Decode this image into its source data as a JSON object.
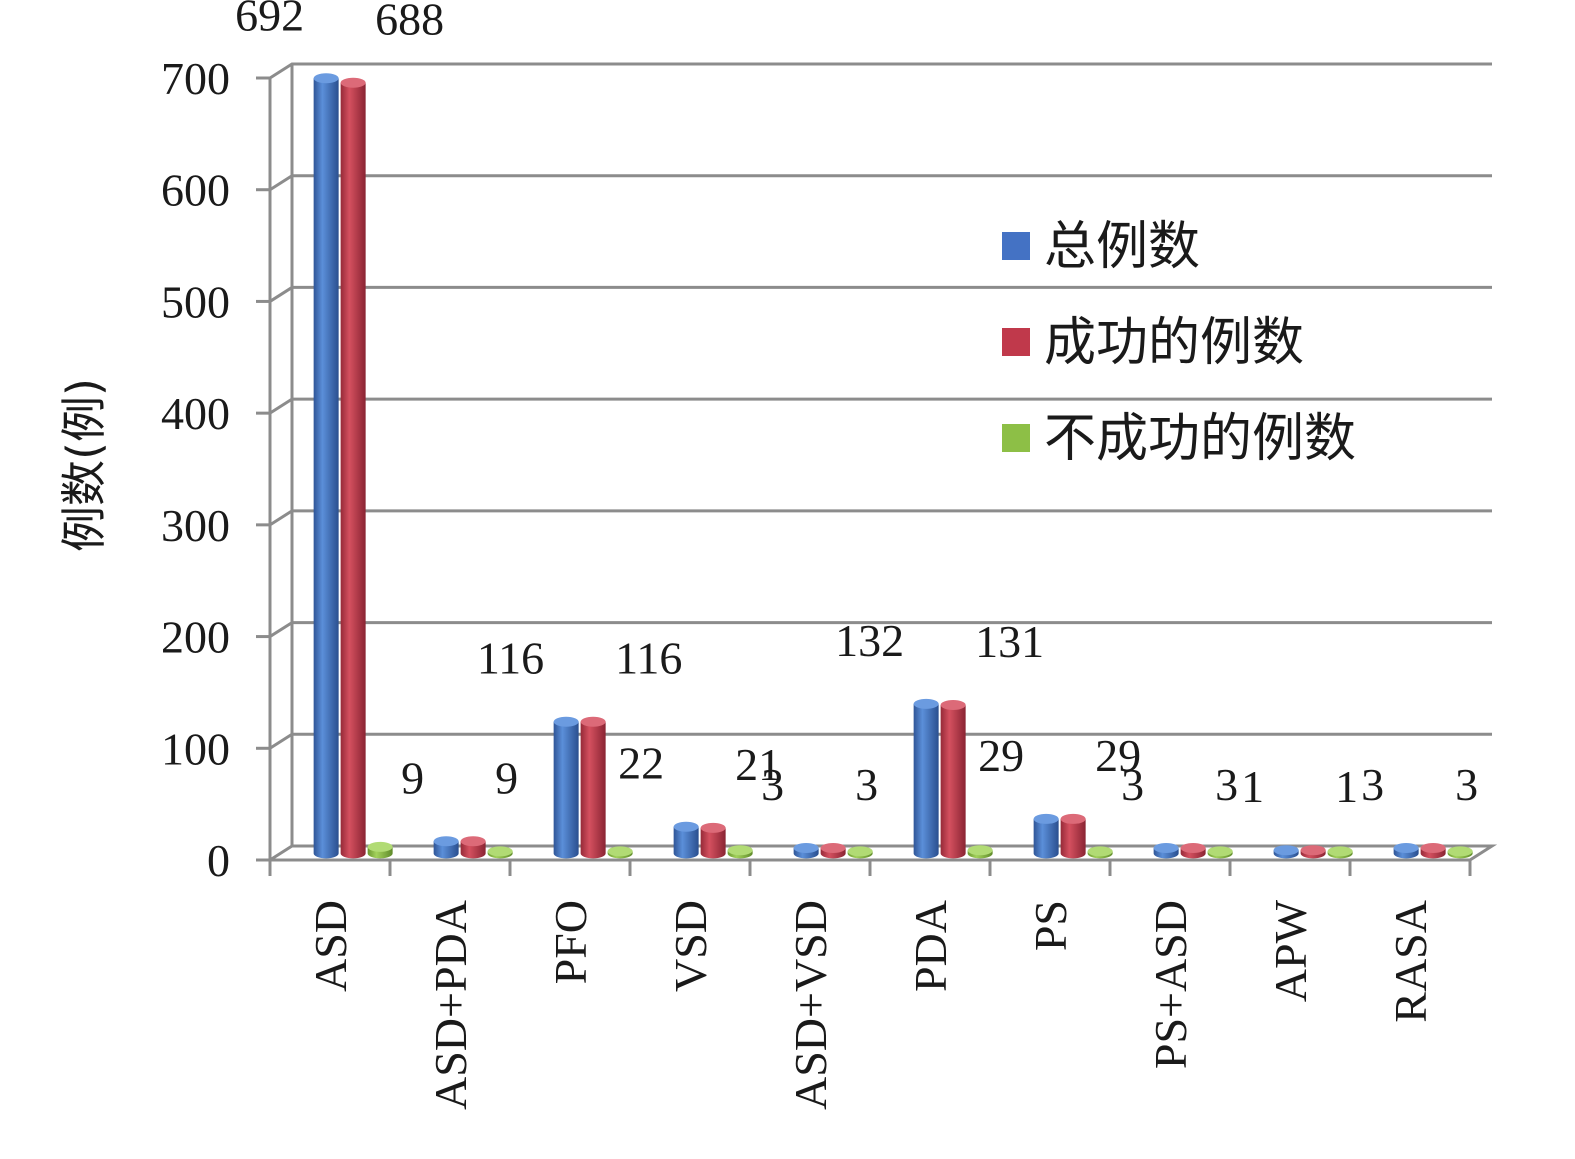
{
  "chart_data": {
    "type": "bar",
    "ylabel": "例数(例)",
    "ylim": [
      0,
      700
    ],
    "yticks": [
      "0",
      "100",
      "200",
      "300",
      "400",
      "500",
      "600",
      "700"
    ],
    "grid": true,
    "legend_position": "right",
    "categories": [
      "ASD",
      "ASD+PDA",
      "PFO",
      "VSD",
      "ASD+VSD",
      "PDA",
      "PS",
      "PS+ASD",
      "APW",
      "RASA"
    ],
    "series": [
      {
        "name": "总例数",
        "color": "#4472C4",
        "values": [
          692,
          9,
          116,
          22,
          3,
          132,
          29,
          3,
          1,
          3
        ],
        "labels": [
          "692",
          "9",
          "116",
          "22",
          "3",
          "132",
          "29",
          "3",
          "1",
          "3"
        ]
      },
      {
        "name": "成功的例数",
        "color": "#C0394B",
        "values": [
          688,
          9,
          116,
          21,
          3,
          131,
          29,
          3,
          1,
          3
        ],
        "labels": [
          "688",
          "9",
          "116",
          "21",
          "3",
          "131",
          "29",
          "3",
          "1",
          "3"
        ]
      },
      {
        "name": "不成功的例数",
        "color": "#8DBF46",
        "values": [
          4,
          0,
          0,
          1,
          0,
          1,
          0,
          0,
          0,
          0
        ],
        "labels": []
      }
    ]
  }
}
